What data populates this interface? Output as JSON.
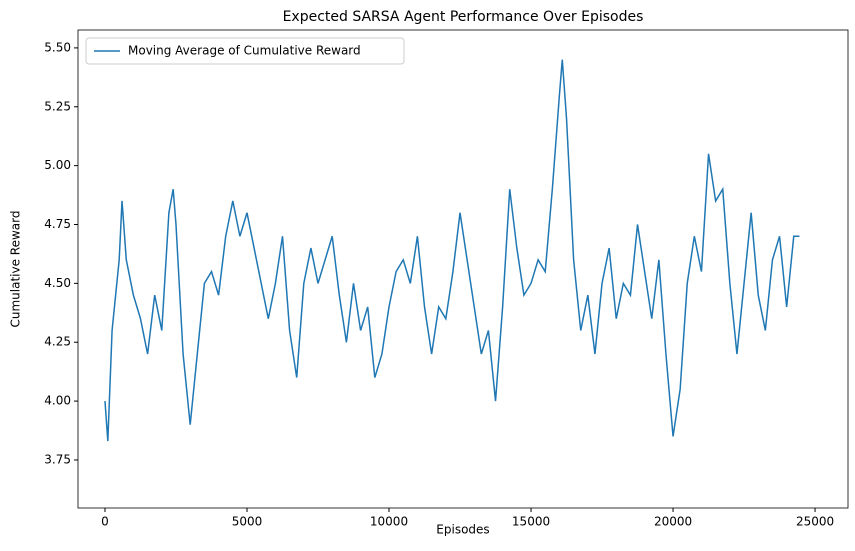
{
  "chart_data": {
    "type": "line",
    "title": "Expected SARSA Agent Performance Over Episodes",
    "xlabel": "Episodes",
    "ylabel": "Cumulative Reward",
    "x": [
      0,
      100,
      250,
      500,
      600,
      750,
      1000,
      1250,
      1500,
      1750,
      2000,
      2250,
      2400,
      2500,
      2750,
      3000,
      3250,
      3500,
      3750,
      4000,
      4250,
      4500,
      4750,
      5000,
      5250,
      5500,
      5750,
      6000,
      6250,
      6500,
      6750,
      7000,
      7250,
      7500,
      7750,
      8000,
      8250,
      8500,
      8750,
      9000,
      9250,
      9500,
      9750,
      10000,
      10250,
      10500,
      10750,
      11000,
      11250,
      11500,
      11750,
      12000,
      12250,
      12500,
      12750,
      13000,
      13250,
      13500,
      13750,
      14000,
      14250,
      14500,
      14750,
      15000,
      15250,
      15500,
      15750,
      16000,
      16100,
      16250,
      16500,
      16750,
      17000,
      17250,
      17500,
      17750,
      18000,
      18250,
      18500,
      18750,
      19000,
      19250,
      19500,
      19750,
      20000,
      20250,
      20500,
      20750,
      21000,
      21250,
      21500,
      21750,
      22000,
      22250,
      22500,
      22750,
      23000,
      23250,
      23500,
      23750,
      24000,
      24250,
      24450
    ],
    "series": [
      {
        "name": "Moving Average of Cumulative Reward",
        "color": "#1f77b4",
        "values": [
          4.0,
          3.83,
          4.3,
          4.6,
          4.85,
          4.6,
          4.45,
          4.35,
          4.2,
          4.45,
          4.3,
          4.8,
          4.9,
          4.75,
          4.2,
          3.9,
          4.2,
          4.5,
          4.55,
          4.45,
          4.7,
          4.85,
          4.7,
          4.8,
          4.65,
          4.5,
          4.35,
          4.5,
          4.7,
          4.3,
          4.1,
          4.5,
          4.65,
          4.5,
          4.6,
          4.7,
          4.45,
          4.25,
          4.5,
          4.3,
          4.4,
          4.1,
          4.2,
          4.4,
          4.55,
          4.6,
          4.5,
          4.7,
          4.4,
          4.2,
          4.4,
          4.35,
          4.55,
          4.8,
          4.6,
          4.4,
          4.2,
          4.3,
          4.0,
          4.4,
          4.9,
          4.65,
          4.45,
          4.5,
          4.6,
          4.55,
          4.9,
          5.3,
          5.45,
          5.2,
          4.6,
          4.3,
          4.45,
          4.2,
          4.5,
          4.65,
          4.35,
          4.5,
          4.45,
          4.75,
          4.55,
          4.35,
          4.6,
          4.2,
          3.85,
          4.05,
          4.5,
          4.7,
          4.55,
          5.05,
          4.85,
          4.9,
          4.5,
          4.2,
          4.5,
          4.8,
          4.45,
          4.3,
          4.6,
          4.7,
          4.4,
          4.7,
          4.7
        ]
      }
    ],
    "xlim": [
      -950,
      26160
    ],
    "ylim": [
      3.546,
      5.576
    ],
    "xticks": [
      0,
      5000,
      10000,
      15000,
      20000,
      25000
    ],
    "yticks": [
      3.75,
      {
        "value": 4,
        "label": "4.00"
      },
      4.25,
      {
        "value": 4.5,
        "label": "4.50"
      },
      4.75,
      {
        "value": 5,
        "label": "5.00"
      },
      5.25,
      {
        "value": 5.5,
        "label": "5.50"
      }
    ],
    "legend": "upper left"
  }
}
